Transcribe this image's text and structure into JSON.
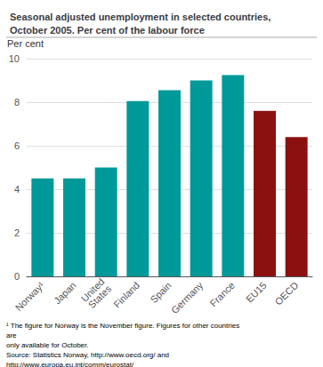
{
  "chart_data": {
    "type": "bar",
    "title": "Seasonal adjusted unemployment in selected countries,\nOctober 2005. Per cent of the labour force",
    "ylabel": "Per cent",
    "categories": [
      "Norway¹",
      "Japan",
      "United\nStates",
      "Finland",
      "Spain",
      "Germany",
      "France",
      "EU15",
      "OECD"
    ],
    "values": [
      4.5,
      4.5,
      5.0,
      8.05,
      8.55,
      9.0,
      9.25,
      7.6,
      6.4
    ],
    "colors": [
      "#009999",
      "#009999",
      "#009999",
      "#009999",
      "#009999",
      "#009999",
      "#009999",
      "#8B1010",
      "#8B1010"
    ],
    "ylim": [
      0,
      10
    ],
    "yticks": [
      0,
      2,
      4,
      6,
      8,
      10
    ],
    "grid": true,
    "annotations": [
      "¹ The figure for Norway is the November figure. Figures for other countries are",
      "only available for October.",
      "Source: Statistics Norway, http://www.oecd.org/ and",
      "http://www.europa.eu.int/comm/eurostat/"
    ]
  }
}
